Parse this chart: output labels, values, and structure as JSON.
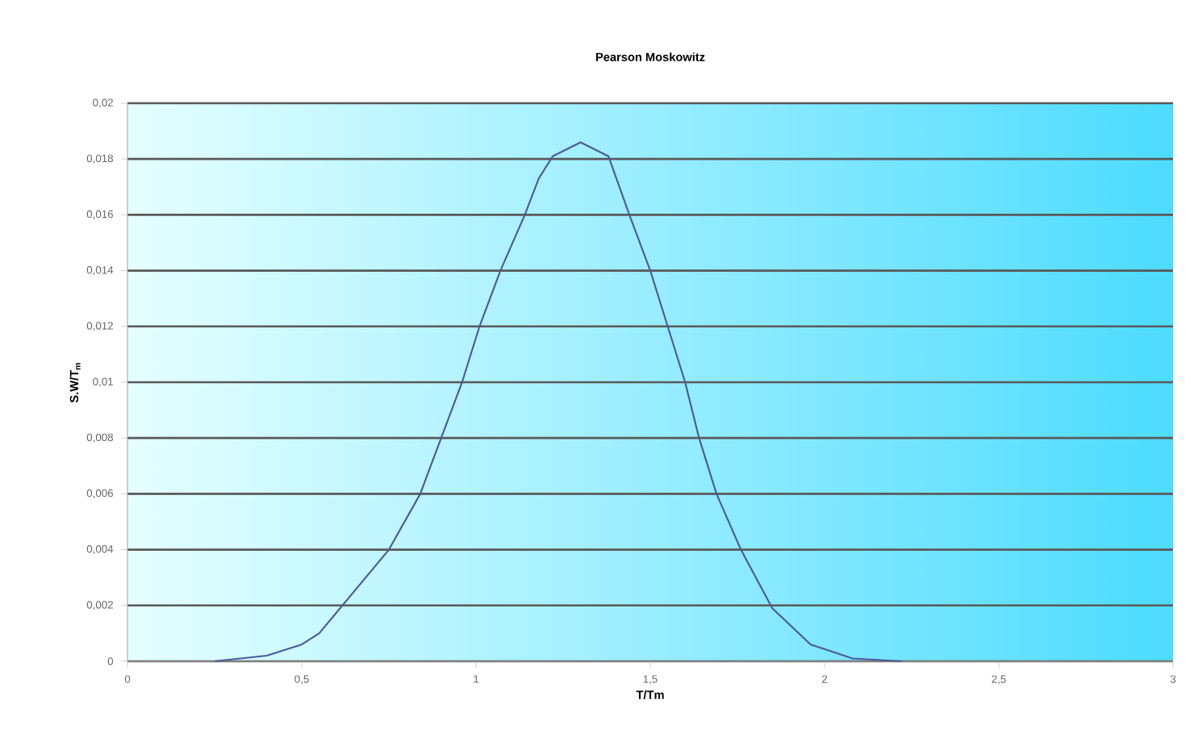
{
  "chart_data": {
    "type": "line",
    "title": "Pearson Moskowitz",
    "xlabel": "T/Tm",
    "ylabel": "S.W/T$_{m}$",
    "xlim": [
      0,
      3
    ],
    "ylim": [
      0,
      0.02
    ],
    "xticks": [
      0,
      {
        "value": 0.5,
        "label": "0,5"
      },
      1,
      {
        "value": 1.5,
        "label": "1,5"
      },
      2,
      {
        "value": 2.5,
        "label": "2,5"
      },
      3
    ],
    "yticks": [
      0,
      {
        "value": 0.002,
        "label": "0,002"
      },
      {
        "value": 0.004,
        "label": "0,004"
      },
      {
        "value": 0.006,
        "label": "0,006"
      },
      {
        "value": 0.008,
        "label": "0,008"
      },
      {
        "value": 0.01,
        "label": "0,01"
      },
      {
        "value": 0.012,
        "label": "0,012"
      },
      {
        "value": 0.014,
        "label": "0,014"
      },
      {
        "value": 0.016,
        "label": "0,016"
      },
      {
        "value": 0.018,
        "label": "0,018"
      },
      {
        "value": 0.02,
        "label": "0,02"
      }
    ],
    "grid": "y",
    "series": [
      {
        "color": "#4a5a9a",
        "x": [
          0.25,
          0.4,
          0.5,
          0.55,
          0.75,
          0.84,
          0.9,
          0.96,
          1.01,
          1.07,
          1.14,
          1.18,
          1.22,
          1.3,
          1.38,
          1.44,
          1.5,
          1.55,
          1.6,
          1.64,
          1.69,
          1.76,
          1.85,
          1.96,
          2.08,
          2.22
        ],
        "values": [
          0,
          0.0002,
          0.0006,
          0.001,
          0.004,
          0.006,
          0.008,
          0.01,
          0.012,
          0.014,
          0.016,
          0.0173,
          0.0181,
          0.0186,
          0.0181,
          0.016,
          0.014,
          0.012,
          0.01,
          0.008,
          0.006,
          0.004,
          0.0019,
          0.0006,
          0.0001,
          0
        ]
      }
    ]
  }
}
